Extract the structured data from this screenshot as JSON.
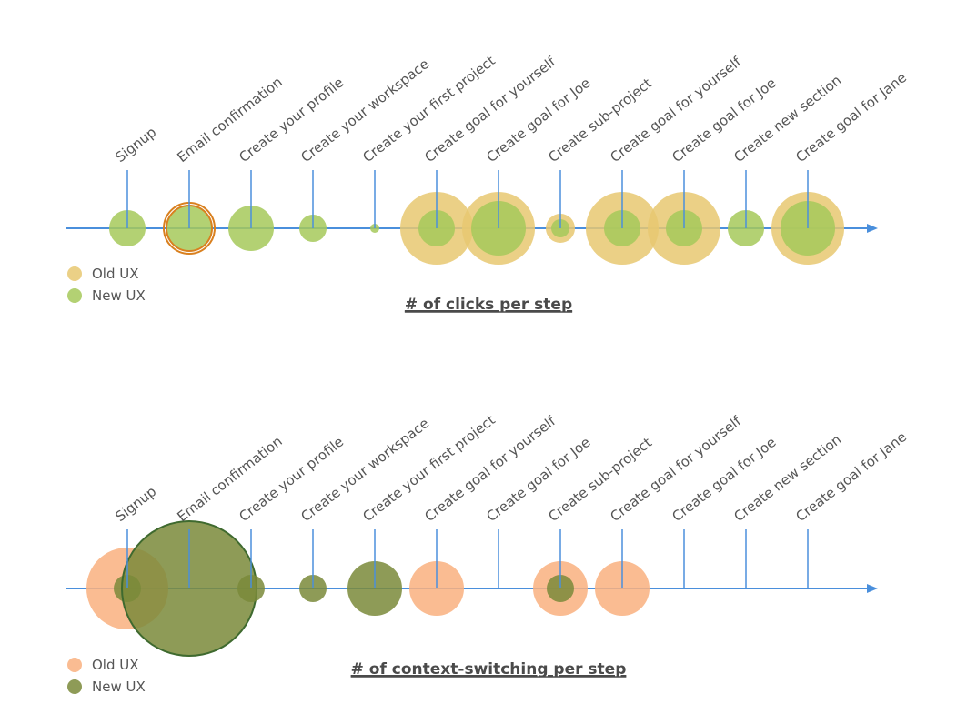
{
  "chart_data": [
    {
      "type": "bubble-timeline",
      "title": "# of clicks per step",
      "categories": [
        "Signup",
        "Email confirmation",
        "Create your profile",
        "Create your workspace",
        "Create your first project",
        "Create goal for yourself",
        "Create goal for Joe",
        "Create sub-project",
        "Create goal for yourself",
        "Create goal for Joe",
        "Create new section",
        "Create goal for Jane"
      ],
      "series": [
        {
          "name": "Old UX",
          "color": "#e8c871",
          "values": [
            0,
            0,
            0,
            0,
            0,
            40,
            40,
            16,
            40,
            40,
            0,
            40
          ]
        },
        {
          "name": "New UX",
          "color": "#a6c95a",
          "values": [
            20,
            25,
            25,
            15,
            5,
            20,
            30,
            10,
            20,
            20,
            20,
            30
          ]
        }
      ],
      "legend": "bottom-left",
      "grid": false
    },
    {
      "type": "bubble-timeline",
      "title": "# of context-switching per step",
      "categories": [
        "Signup",
        "Email confirmation",
        "Create your profile",
        "Create your workspace",
        "Create your first project",
        "Create goal for yourself",
        "Create goal for Joe",
        "Create sub-project",
        "Create goal for yourself",
        "Create goal for Joe",
        "Create new section",
        "Create goal for Jane"
      ],
      "series": [
        {
          "name": "Old UX",
          "color": "#f9b07f",
          "values": [
            45,
            0,
            0,
            0,
            0,
            30,
            0,
            30,
            30,
            0,
            0,
            0
          ]
        },
        {
          "name": "New UX",
          "color": "#7a8a3a",
          "values": [
            15,
            74,
            15,
            15,
            30,
            0,
            0,
            15,
            0,
            0,
            0,
            0
          ]
        }
      ],
      "legend": "bottom-left",
      "grid": false
    }
  ],
  "legend_labels": {
    "old": "Old UX",
    "new": "New UX"
  }
}
